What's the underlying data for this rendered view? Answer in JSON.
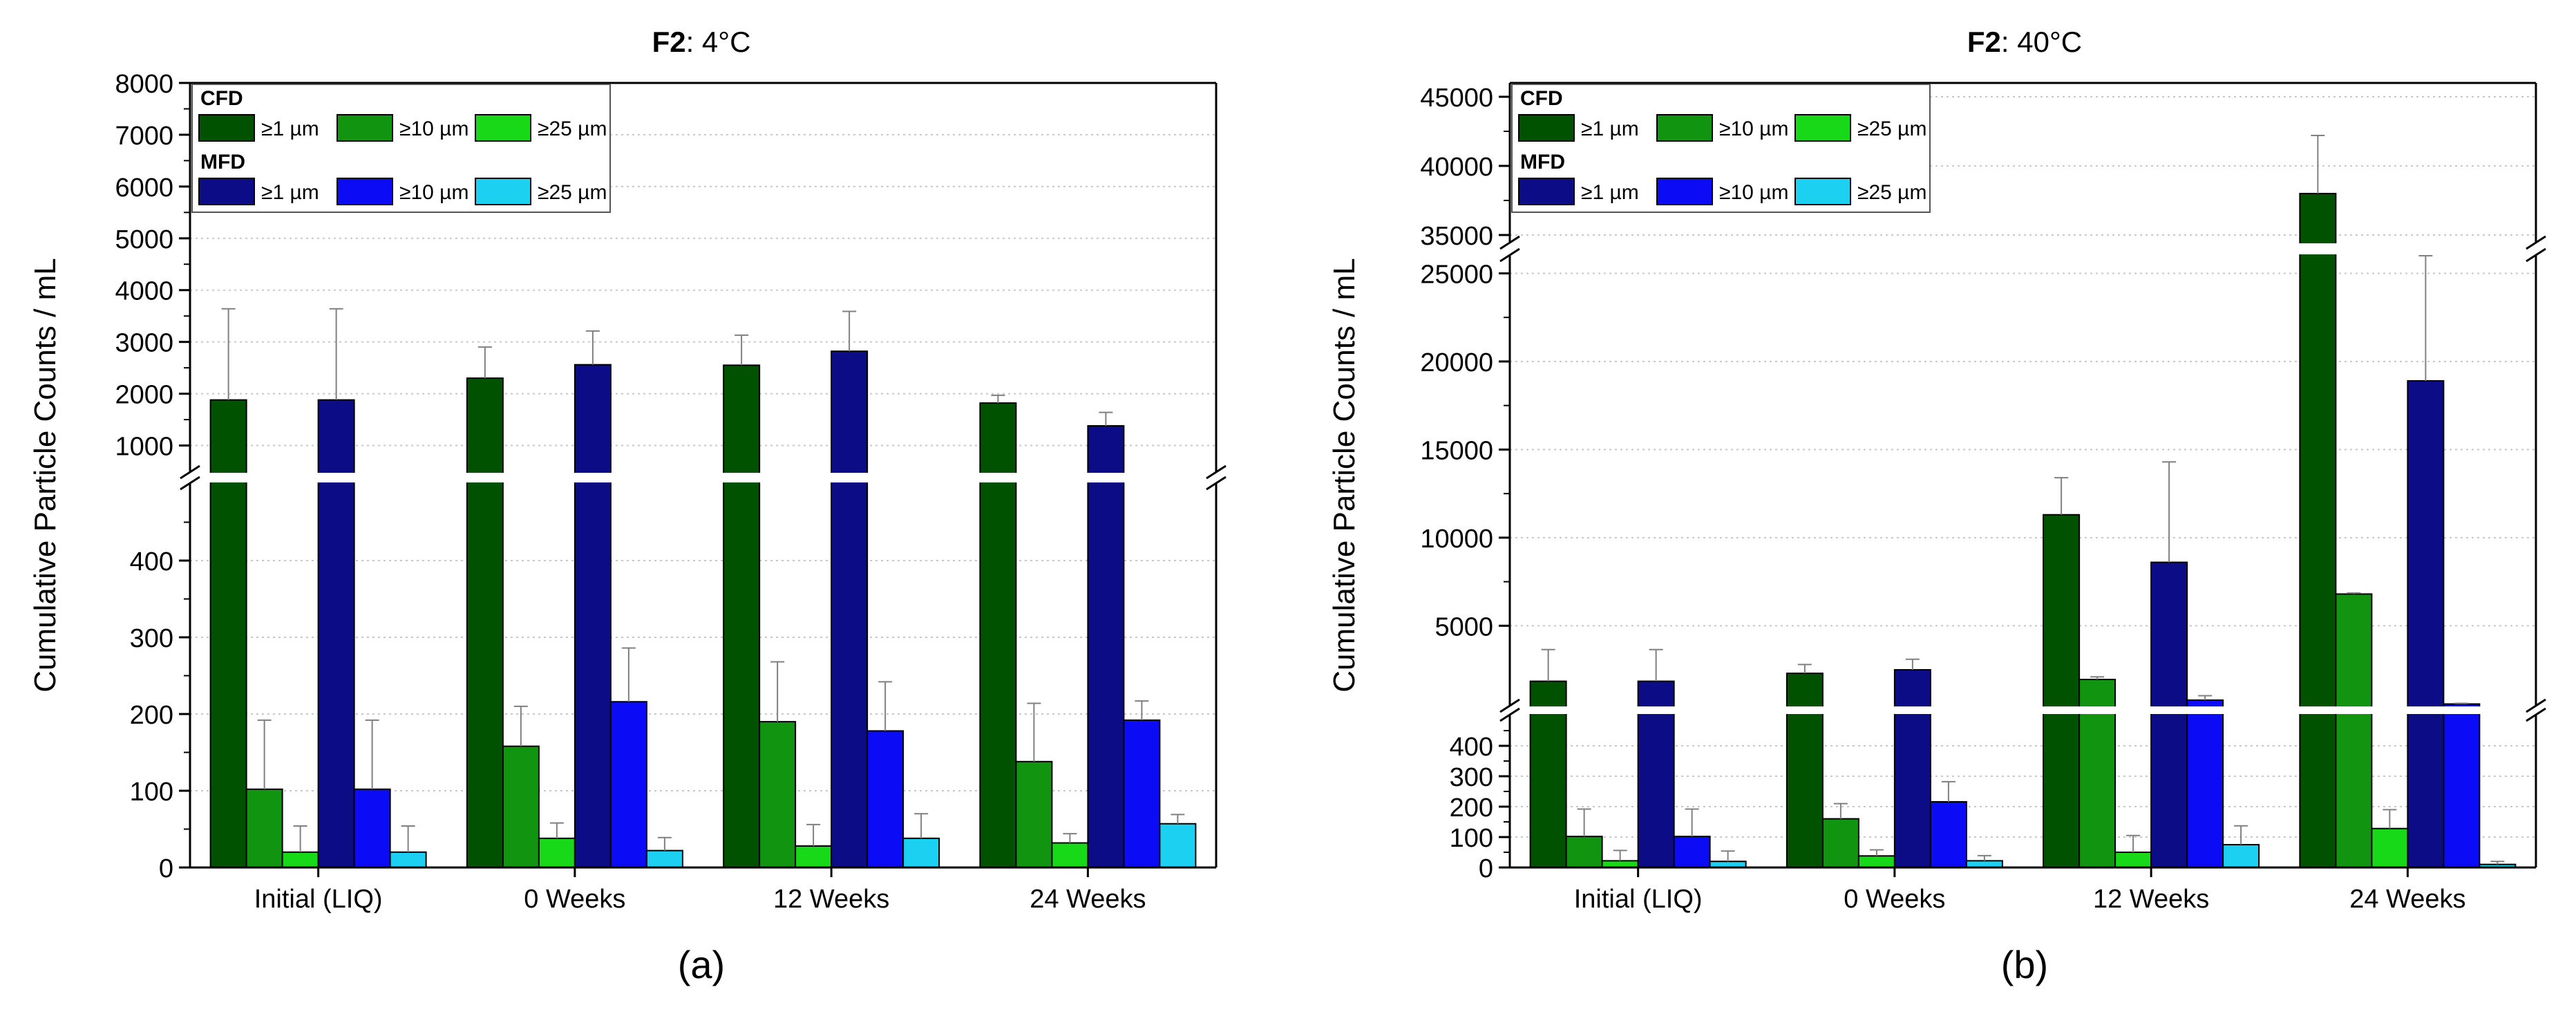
{
  "figure": {
    "panels": [
      "(a)",
      "(b)"
    ]
  },
  "colors": {
    "cfd_1um": "#005200",
    "cfd_10um": "#119511",
    "cfd_25um": "#17d917",
    "mfd_1um": "#0c0c86",
    "mfd_10um": "#0b0bf5",
    "mfd_25um": "#1cd0f2",
    "axis": "#000000",
    "grid": "#c8c8c8",
    "error": "#808080"
  },
  "legend": {
    "groups": [
      {
        "title": "CFD",
        "entries": [
          "≥1 µm",
          "≥10 µm",
          "≥25 µm"
        ]
      },
      {
        "title": "MFD",
        "entries": [
          "≥1 µm",
          "≥10 µm",
          "≥25 µm"
        ]
      }
    ]
  },
  "chart_data": [
    {
      "type": "bar",
      "panel_label": "(a)",
      "title_bold": "F2",
      "title_rest": ": 4°C",
      "ylabel": "Cumulative Particle Counts / mL",
      "xlabel": "",
      "categories": [
        "Initial (LIQ)",
        "0 Weeks",
        "12 Weeks",
        "24 Weeks"
      ],
      "axis_break": {
        "lower": {
          "range": [
            0,
            500
          ],
          "ticks": [
            0,
            100,
            200,
            300,
            400
          ]
        },
        "upper": {
          "range": [
            500,
            8000
          ],
          "ticks": [
            1000,
            2000,
            3000,
            4000,
            5000,
            6000,
            7000,
            8000
          ]
        }
      },
      "grid": true,
      "legend_position": "top-left",
      "series": [
        {
          "name": "CFD ≥1 µm",
          "values": [
            1880,
            2300,
            2550,
            1820
          ],
          "error": [
            1760,
            600,
            580,
            150
          ]
        },
        {
          "name": "CFD ≥10 µm",
          "values": [
            102,
            158,
            190,
            138
          ],
          "error": [
            90,
            52,
            78,
            76
          ]
        },
        {
          "name": "CFD ≥25 µm",
          "values": [
            20,
            38,
            28,
            32
          ],
          "error": [
            34,
            20,
            28,
            12
          ]
        },
        {
          "name": "MFD ≥1 µm",
          "values": [
            1880,
            2560,
            2820,
            1380
          ],
          "error": [
            1760,
            650,
            770,
            260
          ]
        },
        {
          "name": "MFD ≥10 µm",
          "values": [
            102,
            216,
            178,
            192
          ],
          "error": [
            90,
            70,
            64,
            25
          ]
        },
        {
          "name": "MFD ≥25 µm",
          "values": [
            20,
            22,
            38,
            57
          ],
          "error": [
            34,
            17,
            32,
            12
          ]
        }
      ]
    },
    {
      "type": "bar",
      "panel_label": "(b)",
      "title_bold": "F2",
      "title_rest": ": 40°C",
      "ylabel": "Cumulative Particle Counts / mL",
      "xlabel": "",
      "categories": [
        "Initial (LIQ)",
        "0 Weeks",
        "12 Weeks",
        "24 Weeks"
      ],
      "axis_break": {
        "lower": {
          "range": [
            0,
            500
          ],
          "ticks": [
            0,
            100,
            200,
            300,
            400
          ]
        },
        "middle": {
          "range": [
            500,
            26000
          ],
          "ticks": [
            5000,
            10000,
            15000,
            20000,
            25000
          ]
        },
        "upper": {
          "range": [
            34500,
            46000
          ],
          "ticks": [
            35000,
            40000,
            45000
          ]
        }
      },
      "grid": true,
      "legend_position": "top-left",
      "series": [
        {
          "name": "CFD ≥1 µm",
          "values": [
            1850,
            2300,
            11300,
            38000
          ],
          "error": [
            1800,
            500,
            2100,
            4200
          ]
        },
        {
          "name": "CFD ≥10 µm",
          "values": [
            102,
            160,
            1950,
            6800
          ],
          "error": [
            90,
            50,
            150,
            60
          ]
        },
        {
          "name": "CFD ≥25 µm",
          "values": [
            22,
            38,
            50,
            128
          ],
          "error": [
            34,
            20,
            55,
            62
          ]
        },
        {
          "name": "MFD ≥1 µm",
          "values": [
            1850,
            2500,
            8600,
            18900
          ],
          "error": [
            1800,
            600,
            5700,
            7100
          ]
        },
        {
          "name": "MFD ≥10 µm",
          "values": [
            102,
            216,
            780,
            560
          ],
          "error": [
            90,
            66,
            250,
            40
          ]
        },
        {
          "name": "MFD ≥25 µm",
          "values": [
            20,
            22,
            75,
            10
          ],
          "error": [
            34,
            17,
            62,
            10
          ]
        }
      ]
    }
  ]
}
